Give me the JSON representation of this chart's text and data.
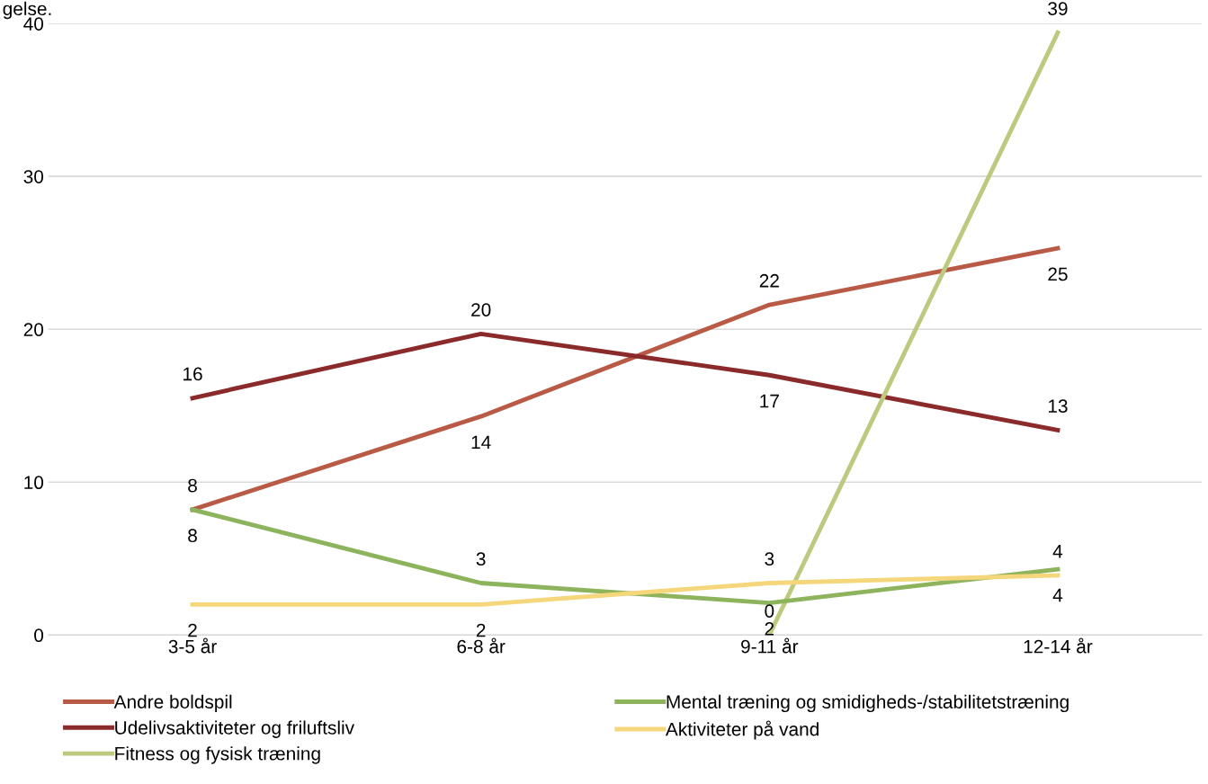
{
  "chart_data": {
    "type": "line",
    "categories": [
      "3-5 år",
      "6-8 år",
      "9-11 år",
      "12-14 år"
    ],
    "series": [
      {
        "name": "Andre boldspil",
        "color": "#b85a45",
        "values": [
          8.2,
          14.3,
          21.6,
          25.3
        ],
        "value_labels": [
          "8",
          "14",
          "22",
          "25"
        ]
      },
      {
        "name": "Udelivsaktiviteter og friluftsliv",
        "color": "#8b2a2a",
        "values": [
          15.5,
          19.7,
          17.0,
          13.4
        ],
        "value_labels": [
          "16",
          "20",
          "17",
          "13"
        ]
      },
      {
        "name": "Fitness og fysisk træning",
        "color": "#bcc97e",
        "values": [
          null,
          null,
          0,
          39.4
        ],
        "value_labels": [
          null,
          null,
          "0",
          "39"
        ]
      },
      {
        "name": "Mental træning og smidigheds-/stabilitetstræning",
        "color": "#8db35c",
        "values": [
          8.2,
          3.4,
          2.1,
          4.3
        ],
        "value_labels": [
          "8",
          "3",
          "2",
          "4"
        ]
      },
      {
        "name": "Aktiviteter på vand",
        "color": "#f5d67a",
        "values": [
          2.0,
          2.0,
          3.4,
          3.9
        ],
        "value_labels": [
          "2",
          "2",
          "3",
          "4"
        ]
      }
    ],
    "ylim": [
      0,
      40
    ],
    "yticks": [
      0,
      10,
      20,
      30,
      40
    ],
    "grid": "y",
    "legend": "bottom",
    "marker": "none",
    "line_style": "solid",
    "annotations": [
      "gelse."
    ]
  }
}
